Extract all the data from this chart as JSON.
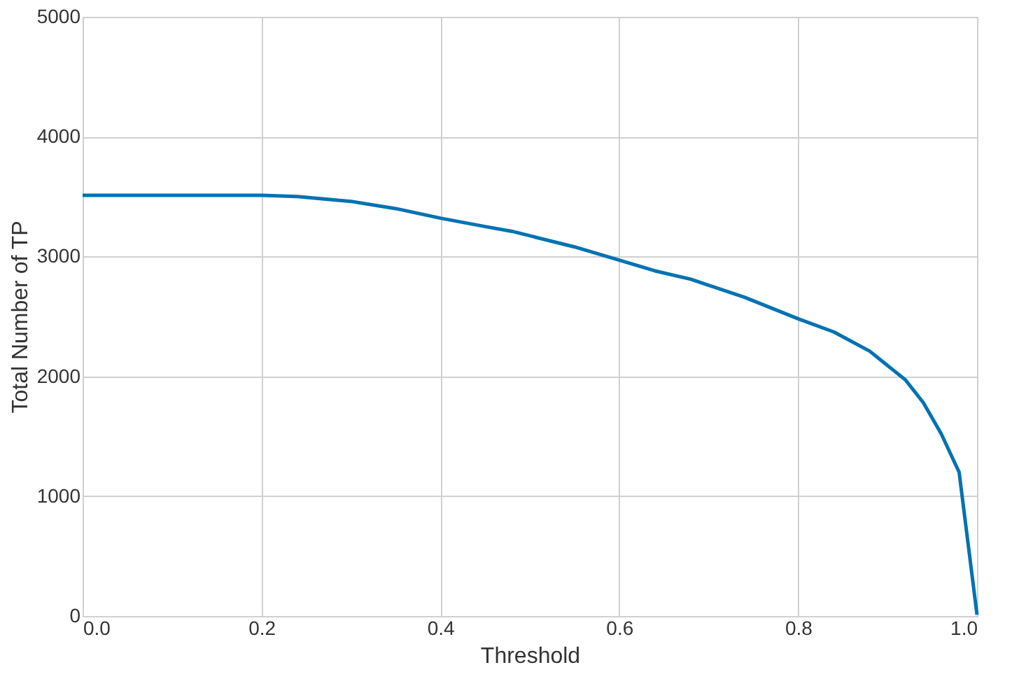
{
  "chart_data": {
    "type": "line",
    "xlabel": "Threshold",
    "ylabel": "Total Number of TP",
    "x": [
      0,
      0.1,
      0.2,
      0.24,
      0.3,
      0.35,
      0.4,
      0.45,
      0.48,
      0.55,
      0.6,
      0.64,
      0.68,
      0.74,
      0.8,
      0.84,
      0.88,
      0.92,
      0.94,
      0.96,
      0.98,
      1.0
    ],
    "series": [
      {
        "color": "#0072b2",
        "values": [
          3510,
          3510,
          3510,
          3500,
          3460,
          3400,
          3320,
          3250,
          3210,
          3080,
          2970,
          2880,
          2810,
          2660,
          2480,
          2370,
          2210,
          1970,
          1780,
          1520,
          1200,
          10
        ]
      }
    ],
    "xlim": [
      0,
      1
    ],
    "xticks": [
      {
        "value": 0,
        "label": "0.0"
      },
      0.2,
      0.4,
      0.6,
      0.8,
      {
        "value": 1,
        "label": "1.0"
      }
    ],
    "ylim": [
      0,
      5000
    ],
    "yticks": [
      0,
      {
        "value": 1000,
        "label": "1000"
      },
      {
        "value": 2000,
        "label": "2000"
      },
      {
        "value": 3000,
        "label": "3000"
      },
      {
        "value": 4000,
        "label": "4000"
      },
      {
        "value": 5000,
        "label": "5000"
      }
    ],
    "grid": true,
    "marker": "none",
    "line_style": "solid"
  }
}
